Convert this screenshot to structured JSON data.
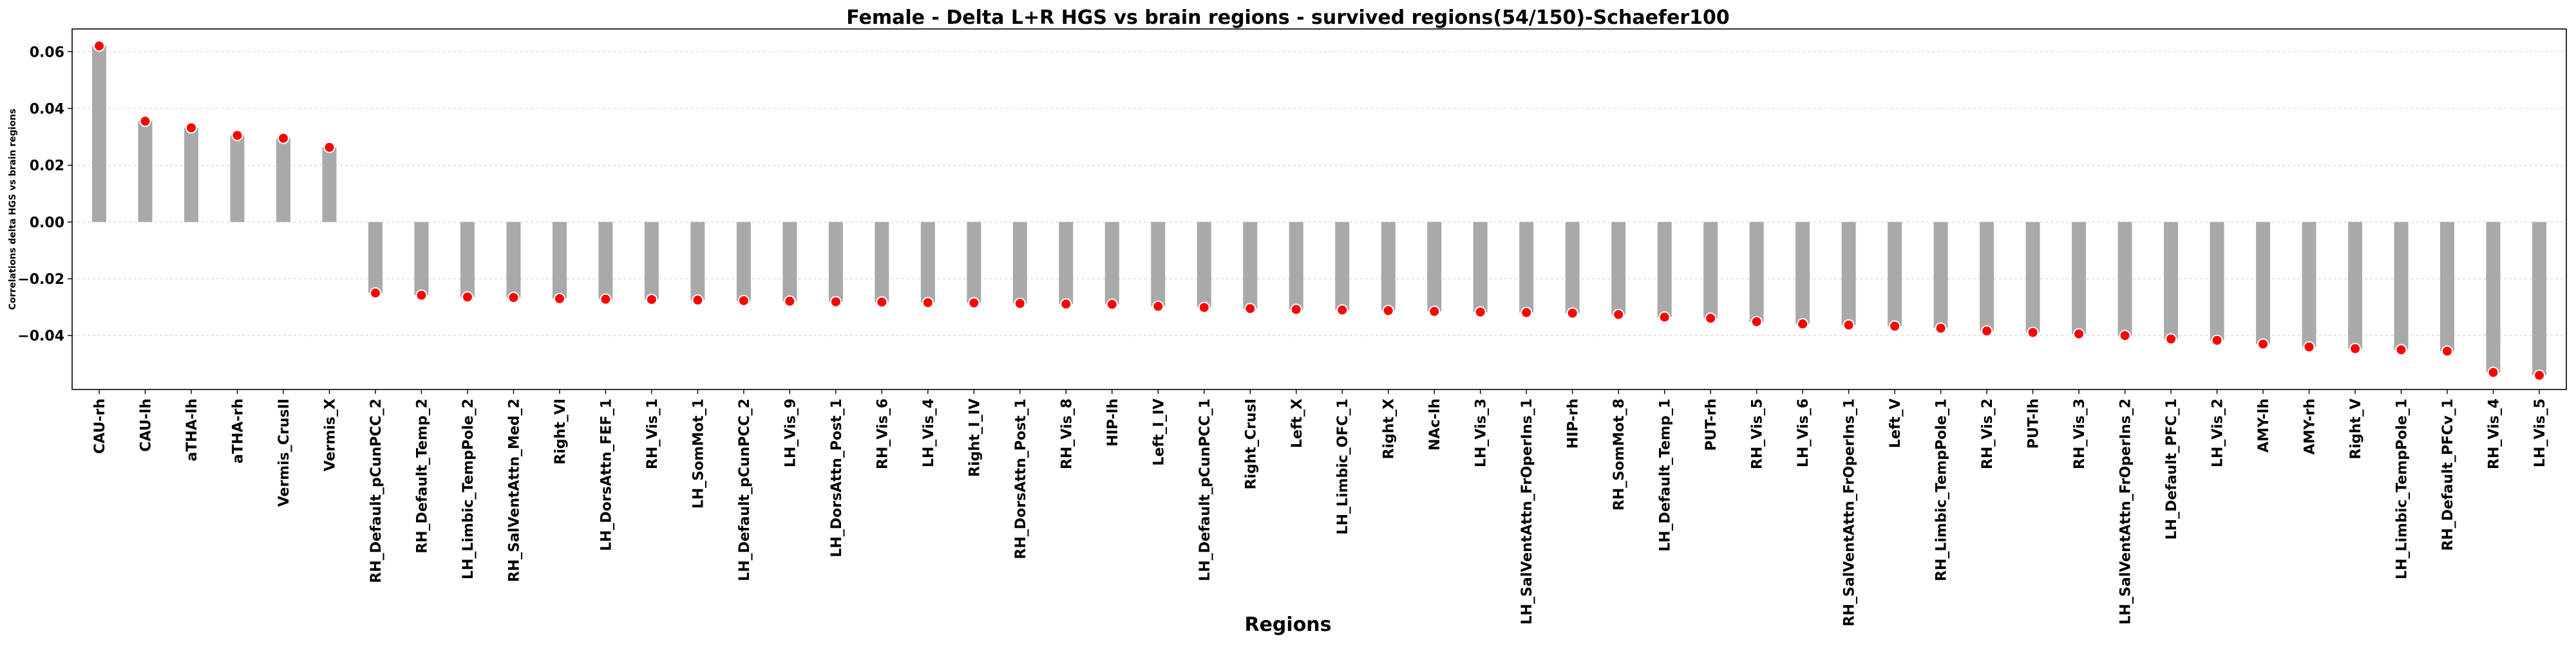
{
  "chart_data": {
    "type": "bar",
    "title": "Female - Delta L+R HGS vs brain regions - survived regions(54/150)-Schaefer100",
    "xlabel": "Regions",
    "ylabel": "Correlations delta HGS vs brain regions",
    "ylim": [
      -0.059,
      0.068
    ],
    "yticks": [
      -0.04,
      -0.02,
      0.0,
      0.02,
      0.04,
      0.06
    ],
    "ytick_labels": [
      "−0.04",
      "−0.02",
      "0.00",
      "0.02",
      "0.04",
      "0.06"
    ],
    "grid": true,
    "colors": {
      "bar": "#a9a9a9",
      "marker": "#ff0000",
      "marker_edge": "#ffffff",
      "grid": "#d9d9d9"
    },
    "categories": [
      "CAU-rh",
      "CAU-lh",
      "aTHA-lh",
      "aTHA-rh",
      "Vermis_CrusII",
      "Vermis_X",
      "RH_Default_pCunPCC_2",
      "RH_Default_Temp_2",
      "LH_Limbic_TempPole_2",
      "RH_SalVentAttn_Med_2",
      "Right_VI",
      "LH_DorsAttn_FEF_1",
      "RH_Vis_1",
      "LH_SomMot_1",
      "LH_Default_pCunPCC_2",
      "LH_Vis_9",
      "LH_DorsAttn_Post_1",
      "RH_Vis_6",
      "LH_Vis_4",
      "Right_I_IV",
      "RH_DorsAttn_Post_1",
      "RH_Vis_8",
      "HIP-lh",
      "Left_I_IV",
      "LH_Default_pCunPCC_1",
      "Right_CrusI",
      "Left_X",
      "LH_Limbic_OFC_1",
      "Right_X",
      "NAc-lh",
      "LH_Vis_3",
      "LH_SalVentAttn_FrOperIns_1",
      "HIP-rh",
      "RH_SomMot_8",
      "LH_Default_Temp_1",
      "PUT-rh",
      "RH_Vis_5",
      "LH_Vis_6",
      "RH_SalVentAttn_FrOperIns_1",
      "Left_V",
      "RH_Limbic_TempPole_1",
      "RH_Vis_2",
      "PUT-lh",
      "RH_Vis_3",
      "LH_SalVentAttn_FrOperIns_2",
      "LH_Default_PFC_1",
      "LH_Vis_2",
      "AMY-lh",
      "AMY-rh",
      "Right_V",
      "LH_Limbic_TempPole_1",
      "RH_Default_PFCv_1",
      "RH_Vis_4",
      "LH_Vis_5"
    ],
    "values": [
      0.062,
      0.0355,
      0.0332,
      0.0305,
      0.0295,
      0.0263,
      -0.025,
      -0.0258,
      -0.0264,
      -0.0266,
      -0.027,
      -0.0272,
      -0.0273,
      -0.0275,
      -0.0277,
      -0.0279,
      -0.0281,
      -0.0282,
      -0.0284,
      -0.0285,
      -0.0287,
      -0.0289,
      -0.029,
      -0.0297,
      -0.0301,
      -0.0305,
      -0.0308,
      -0.031,
      -0.0312,
      -0.0315,
      -0.0317,
      -0.0319,
      -0.0321,
      -0.0326,
      -0.0335,
      -0.0339,
      -0.0351,
      -0.0359,
      -0.0363,
      -0.0367,
      -0.0374,
      -0.0384,
      -0.0389,
      -0.0394,
      -0.04,
      -0.0412,
      -0.0417,
      -0.043,
      -0.044,
      -0.0446,
      -0.045,
      -0.0455,
      -0.053,
      -0.054
    ]
  }
}
